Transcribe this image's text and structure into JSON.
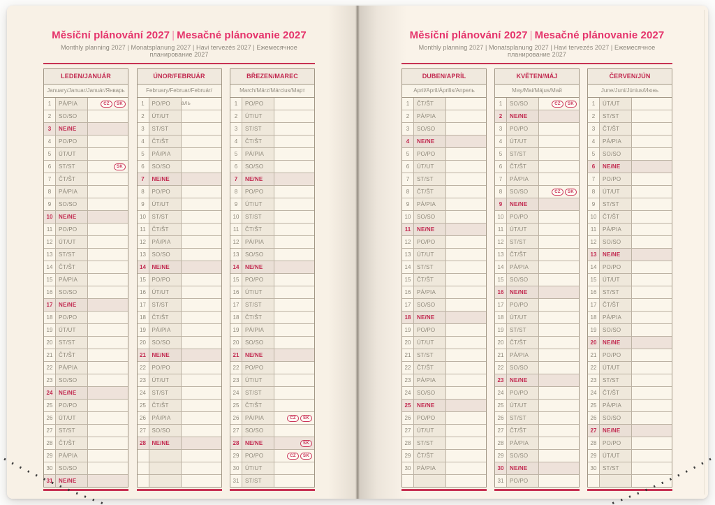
{
  "page_header": {
    "title_cz": "Měsíční plánování 2027",
    "title_sep": "|",
    "title_sk": "Mesačné plánovanie 2027",
    "subtitle": "Monthly planning 2027 | Monatsplanung 2027 | Havi tervezés 2027 | Ежемесячное планирование 2027"
  },
  "colors": {
    "title_pink": "#e5336b",
    "month_red": "#c22a50",
    "rule_red": "#c73253",
    "page_cream": "#f8f1e6",
    "day_cell_beige": "#efe8db",
    "sunday_bg": "#eee2da",
    "grid_line": "#bcb2a3",
    "text_gray": "#8e887a"
  },
  "months": [
    {
      "name": "LEDEN/JANUÁR",
      "subtitle": "January/Januar/Január/Январь",
      "trailing_empty_rows": 0,
      "days": [
        {
          "n": 1,
          "w": "PÁ/PIA",
          "b": [
            "CZ",
            "SK"
          ]
        },
        {
          "n": 2,
          "w": "SO/SO"
        },
        {
          "n": 3,
          "w": "NE/NE"
        },
        {
          "n": 4,
          "w": "PO/PO"
        },
        {
          "n": 5,
          "w": "ÚT/UT"
        },
        {
          "n": 6,
          "w": "ST/ST",
          "b": [
            "SK"
          ]
        },
        {
          "n": 7,
          "w": "ČT/ŠT"
        },
        {
          "n": 8,
          "w": "PÁ/PIA"
        },
        {
          "n": 9,
          "w": "SO/SO"
        },
        {
          "n": 10,
          "w": "NE/NE"
        },
        {
          "n": 11,
          "w": "PO/PO"
        },
        {
          "n": 12,
          "w": "ÚT/UT"
        },
        {
          "n": 13,
          "w": "ST/ST"
        },
        {
          "n": 14,
          "w": "ČT/ŠT"
        },
        {
          "n": 15,
          "w": "PÁ/PIA"
        },
        {
          "n": 16,
          "w": "SO/SO"
        },
        {
          "n": 17,
          "w": "NE/NE"
        },
        {
          "n": 18,
          "w": "PO/PO"
        },
        {
          "n": 19,
          "w": "ÚT/UT"
        },
        {
          "n": 20,
          "w": "ST/ST"
        },
        {
          "n": 21,
          "w": "ČT/ŠT"
        },
        {
          "n": 22,
          "w": "PÁ/PIA"
        },
        {
          "n": 23,
          "w": "SO/SO"
        },
        {
          "n": 24,
          "w": "NE/NE"
        },
        {
          "n": 25,
          "w": "PO/PO"
        },
        {
          "n": 26,
          "w": "ÚT/UT"
        },
        {
          "n": 27,
          "w": "ST/ST"
        },
        {
          "n": 28,
          "w": "ČT/ŠT"
        },
        {
          "n": 29,
          "w": "PÁ/PIA"
        },
        {
          "n": 30,
          "w": "SO/SO"
        },
        {
          "n": 31,
          "w": "NE/NE"
        }
      ]
    },
    {
      "name": "ÚNOR/FEBRUÁR",
      "subtitle": "February/Februar/Február/Февраль",
      "trailing_empty_rows": 3,
      "days": [
        {
          "n": 1,
          "w": "PO/PO"
        },
        {
          "n": 2,
          "w": "ÚT/UT"
        },
        {
          "n": 3,
          "w": "ST/ST"
        },
        {
          "n": 4,
          "w": "ČT/ŠT"
        },
        {
          "n": 5,
          "w": "PÁ/PIA"
        },
        {
          "n": 6,
          "w": "SO/SO"
        },
        {
          "n": 7,
          "w": "NE/NE"
        },
        {
          "n": 8,
          "w": "PO/PO"
        },
        {
          "n": 9,
          "w": "ÚT/UT"
        },
        {
          "n": 10,
          "w": "ST/ST"
        },
        {
          "n": 11,
          "w": "ČT/ŠT"
        },
        {
          "n": 12,
          "w": "PÁ/PIA"
        },
        {
          "n": 13,
          "w": "SO/SO"
        },
        {
          "n": 14,
          "w": "NE/NE"
        },
        {
          "n": 15,
          "w": "PO/PO"
        },
        {
          "n": 16,
          "w": "ÚT/UT"
        },
        {
          "n": 17,
          "w": "ST/ST"
        },
        {
          "n": 18,
          "w": "ČT/ŠT"
        },
        {
          "n": 19,
          "w": "PÁ/PIA"
        },
        {
          "n": 20,
          "w": "SO/SO"
        },
        {
          "n": 21,
          "w": "NE/NE"
        },
        {
          "n": 22,
          "w": "PO/PO"
        },
        {
          "n": 23,
          "w": "ÚT/UT"
        },
        {
          "n": 24,
          "w": "ST/ST"
        },
        {
          "n": 25,
          "w": "ČT/ŠT"
        },
        {
          "n": 26,
          "w": "PÁ/PIA"
        },
        {
          "n": 27,
          "w": "SO/SO"
        },
        {
          "n": 28,
          "w": "NE/NE"
        }
      ]
    },
    {
      "name": "BŘEZEN/MAREC",
      "subtitle": "March/März/Március/Март",
      "trailing_empty_rows": 0,
      "days": [
        {
          "n": 1,
          "w": "PO/PO"
        },
        {
          "n": 2,
          "w": "ÚT/UT"
        },
        {
          "n": 3,
          "w": "ST/ST"
        },
        {
          "n": 4,
          "w": "ČT/ŠT"
        },
        {
          "n": 5,
          "w": "PÁ/PIA"
        },
        {
          "n": 6,
          "w": "SO/SO"
        },
        {
          "n": 7,
          "w": "NE/NE"
        },
        {
          "n": 8,
          "w": "PO/PO"
        },
        {
          "n": 9,
          "w": "ÚT/UT"
        },
        {
          "n": 10,
          "w": "ST/ST"
        },
        {
          "n": 11,
          "w": "ČT/ŠT"
        },
        {
          "n": 12,
          "w": "PÁ/PIA"
        },
        {
          "n": 13,
          "w": "SO/SO"
        },
        {
          "n": 14,
          "w": "NE/NE"
        },
        {
          "n": 15,
          "w": "PO/PO"
        },
        {
          "n": 16,
          "w": "ÚT/UT"
        },
        {
          "n": 17,
          "w": "ST/ST"
        },
        {
          "n": 18,
          "w": "ČT/ŠT"
        },
        {
          "n": 19,
          "w": "PÁ/PIA"
        },
        {
          "n": 20,
          "w": "SO/SO"
        },
        {
          "n": 21,
          "w": "NE/NE"
        },
        {
          "n": 22,
          "w": "PO/PO"
        },
        {
          "n": 23,
          "w": "ÚT/UT"
        },
        {
          "n": 24,
          "w": "ST/ST"
        },
        {
          "n": 25,
          "w": "ČT/ŠT"
        },
        {
          "n": 26,
          "w": "PÁ/PIA",
          "b": [
            "CZ",
            "SK"
          ]
        },
        {
          "n": 27,
          "w": "SO/SO"
        },
        {
          "n": 28,
          "w": "NE/NE",
          "b": [
            "SK"
          ]
        },
        {
          "n": 29,
          "w": "PO/PO",
          "b": [
            "CZ",
            "SK"
          ]
        },
        {
          "n": 30,
          "w": "ÚT/UT"
        },
        {
          "n": 31,
          "w": "ST/ST"
        }
      ]
    },
    {
      "name": "DUBEN/APRÍL",
      "subtitle": "April/April/Április/Апрель",
      "trailing_empty_rows": 1,
      "days": [
        {
          "n": 1,
          "w": "ČT/ŠT"
        },
        {
          "n": 2,
          "w": "PÁ/PIA"
        },
        {
          "n": 3,
          "w": "SO/SO"
        },
        {
          "n": 4,
          "w": "NE/NE"
        },
        {
          "n": 5,
          "w": "PO/PO"
        },
        {
          "n": 6,
          "w": "ÚT/UT"
        },
        {
          "n": 7,
          "w": "ST/ST"
        },
        {
          "n": 8,
          "w": "ČT/ŠT"
        },
        {
          "n": 9,
          "w": "PÁ/PIA"
        },
        {
          "n": 10,
          "w": "SO/SO"
        },
        {
          "n": 11,
          "w": "NE/NE"
        },
        {
          "n": 12,
          "w": "PO/PO"
        },
        {
          "n": 13,
          "w": "ÚT/UT"
        },
        {
          "n": 14,
          "w": "ST/ST"
        },
        {
          "n": 15,
          "w": "ČT/ŠT"
        },
        {
          "n": 16,
          "w": "PÁ/PIA"
        },
        {
          "n": 17,
          "w": "SO/SO"
        },
        {
          "n": 18,
          "w": "NE/NE"
        },
        {
          "n": 19,
          "w": "PO/PO"
        },
        {
          "n": 20,
          "w": "ÚT/UT"
        },
        {
          "n": 21,
          "w": "ST/ST"
        },
        {
          "n": 22,
          "w": "ČT/ŠT"
        },
        {
          "n": 23,
          "w": "PÁ/PIA"
        },
        {
          "n": 24,
          "w": "SO/SO"
        },
        {
          "n": 25,
          "w": "NE/NE"
        },
        {
          "n": 26,
          "w": "PO/PO"
        },
        {
          "n": 27,
          "w": "ÚT/UT"
        },
        {
          "n": 28,
          "w": "ST/ST"
        },
        {
          "n": 29,
          "w": "ČT/ŠT"
        },
        {
          "n": 30,
          "w": "PÁ/PIA"
        }
      ]
    },
    {
      "name": "KVĚTEN/MÁJ",
      "subtitle": "May/Mai/Május/Май",
      "trailing_empty_rows": 0,
      "days": [
        {
          "n": 1,
          "w": "SO/SO",
          "b": [
            "CZ",
            "SK"
          ]
        },
        {
          "n": 2,
          "w": "NE/NE"
        },
        {
          "n": 3,
          "w": "PO/PO"
        },
        {
          "n": 4,
          "w": "ÚT/UT"
        },
        {
          "n": 5,
          "w": "ST/ST"
        },
        {
          "n": 6,
          "w": "ČT/ŠT"
        },
        {
          "n": 7,
          "w": "PÁ/PIA"
        },
        {
          "n": 8,
          "w": "SO/SO",
          "b": [
            "CZ",
            "SK"
          ]
        },
        {
          "n": 9,
          "w": "NE/NE"
        },
        {
          "n": 10,
          "w": "PO/PO"
        },
        {
          "n": 11,
          "w": "ÚT/UT"
        },
        {
          "n": 12,
          "w": "ST/ST"
        },
        {
          "n": 13,
          "w": "ČT/ŠT"
        },
        {
          "n": 14,
          "w": "PÁ/PIA"
        },
        {
          "n": 15,
          "w": "SO/SO"
        },
        {
          "n": 16,
          "w": "NE/NE"
        },
        {
          "n": 17,
          "w": "PO/PO"
        },
        {
          "n": 18,
          "w": "ÚT/UT"
        },
        {
          "n": 19,
          "w": "ST/ST"
        },
        {
          "n": 20,
          "w": "ČT/ŠT"
        },
        {
          "n": 21,
          "w": "PÁ/PIA"
        },
        {
          "n": 22,
          "w": "SO/SO"
        },
        {
          "n": 23,
          "w": "NE/NE"
        },
        {
          "n": 24,
          "w": "PO/PO"
        },
        {
          "n": 25,
          "w": "ÚT/UT"
        },
        {
          "n": 26,
          "w": "ST/ST"
        },
        {
          "n": 27,
          "w": "ČT/ŠT"
        },
        {
          "n": 28,
          "w": "PÁ/PIA"
        },
        {
          "n": 29,
          "w": "SO/SO"
        },
        {
          "n": 30,
          "w": "NE/NE"
        },
        {
          "n": 31,
          "w": "PO/PO"
        }
      ]
    },
    {
      "name": "ČERVEN/JÚN",
      "subtitle": "June/Juni/Június/Июнь",
      "trailing_empty_rows": 1,
      "days": [
        {
          "n": 1,
          "w": "ÚT/UT"
        },
        {
          "n": 2,
          "w": "ST/ST"
        },
        {
          "n": 3,
          "w": "ČT/ŠT"
        },
        {
          "n": 4,
          "w": "PÁ/PIA"
        },
        {
          "n": 5,
          "w": "SO/SO"
        },
        {
          "n": 6,
          "w": "NE/NE"
        },
        {
          "n": 7,
          "w": "PO/PO"
        },
        {
          "n": 8,
          "w": "ÚT/UT"
        },
        {
          "n": 9,
          "w": "ST/ST"
        },
        {
          "n": 10,
          "w": "ČT/ŠT"
        },
        {
          "n": 11,
          "w": "PÁ/PIA"
        },
        {
          "n": 12,
          "w": "SO/SO"
        },
        {
          "n": 13,
          "w": "NE/NE"
        },
        {
          "n": 14,
          "w": "PO/PO"
        },
        {
          "n": 15,
          "w": "ÚT/UT"
        },
        {
          "n": 16,
          "w": "ST/ST"
        },
        {
          "n": 17,
          "w": "ČT/ŠT"
        },
        {
          "n": 18,
          "w": "PÁ/PIA"
        },
        {
          "n": 19,
          "w": "SO/SO"
        },
        {
          "n": 20,
          "w": "NE/NE"
        },
        {
          "n": 21,
          "w": "PO/PO"
        },
        {
          "n": 22,
          "w": "ÚT/UT"
        },
        {
          "n": 23,
          "w": "ST/ST"
        },
        {
          "n": 24,
          "w": "ČT/ŠT"
        },
        {
          "n": 25,
          "w": "PÁ/PIA"
        },
        {
          "n": 26,
          "w": "SO/SO"
        },
        {
          "n": 27,
          "w": "NE/NE"
        },
        {
          "n": 28,
          "w": "PO/PO"
        },
        {
          "n": 29,
          "w": "ÚT/UT"
        },
        {
          "n": 30,
          "w": "ST/ST"
        }
      ]
    }
  ]
}
